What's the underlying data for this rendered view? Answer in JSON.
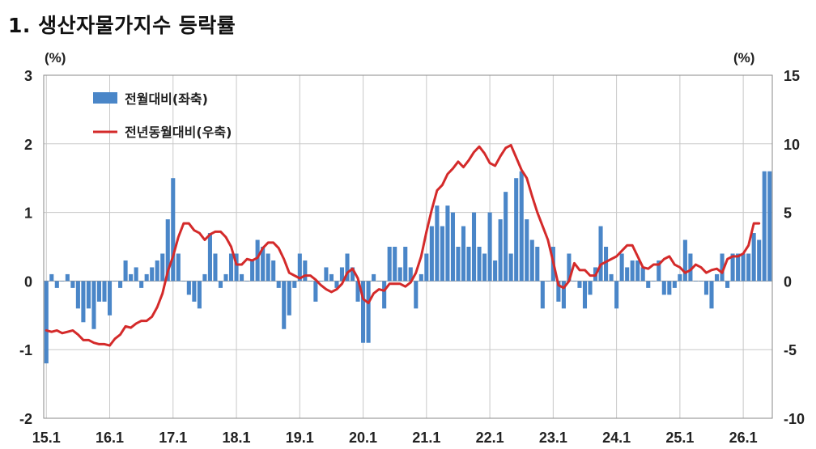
{
  "title": "1. 생산자물가지수 등락률",
  "chart_data": {
    "type": "bar+line",
    "title": "1. 생산자물가지수 등락률",
    "left_unit": "(%)",
    "right_unit": "(%)",
    "y_left": {
      "min": -2,
      "max": 3,
      "ticks": [
        "-2",
        "-1",
        "0",
        "1",
        "2",
        "3"
      ]
    },
    "y_right": {
      "min": -10,
      "max": 15,
      "ticks": [
        "-10",
        "-5",
        "0",
        "5",
        "10",
        "15"
      ]
    },
    "x_ticks": [
      "15.1",
      "16.1",
      "17.1",
      "18.1",
      "19.1",
      "20.1",
      "21.1",
      "22.1",
      "23.1",
      "24.1",
      "25.1",
      "26.1"
    ],
    "grid": true,
    "legend_position": "top-left",
    "series": [
      {
        "name": "전월대비(좌축)",
        "type": "bar",
        "axis": "left",
        "color": "#4a86c8",
        "values": [
          -1.2,
          0.1,
          -0.1,
          0,
          0.1,
          -0.1,
          -0.4,
          -0.6,
          -0.4,
          -0.7,
          -0.3,
          -0.3,
          -0.5,
          0,
          -0.1,
          0.3,
          0.1,
          0.2,
          -0.1,
          0.1,
          0.2,
          0.3,
          0.4,
          0.9,
          1.5,
          0.4,
          0,
          -0.2,
          -0.3,
          -0.4,
          0.1,
          0.7,
          0.4,
          -0.1,
          0.1,
          0.4,
          0.4,
          0.1,
          0,
          0.3,
          0.6,
          0.5,
          0.4,
          0.3,
          -0.1,
          -0.7,
          -0.5,
          -0.1,
          0.4,
          0.3,
          0,
          -0.3,
          0,
          0.2,
          0.1,
          -0.1,
          0.2,
          0.4,
          0.2,
          -0.3,
          -0.9,
          -0.9,
          0.1,
          0,
          -0.4,
          0.5,
          0.5,
          0.2,
          0.5,
          0.2,
          -0.4,
          0.1,
          0.4,
          0.8,
          1.1,
          0.8,
          1.1,
          1.0,
          0.5,
          0.8,
          0.5,
          1.0,
          0.5,
          0.4,
          1.0,
          0.3,
          0.9,
          1.3,
          0.4,
          1.5,
          1.6,
          0.9,
          0.6,
          0.5,
          -0.4,
          0,
          0.5,
          -0.3,
          -0.4,
          0.4,
          0,
          -0.1,
          -0.4,
          -0.2,
          0.2,
          0.8,
          0.5,
          0.1,
          -0.4,
          0.4,
          0.2,
          0.3,
          0.3,
          0.2,
          -0.1,
          0,
          0.3,
          -0.2,
          -0.2,
          -0.1,
          0.1,
          0.6,
          0.4,
          0,
          0,
          -0.2,
          -0.4,
          0.1,
          0.4,
          -0.1,
          0.4,
          0.4,
          0.4,
          0.4,
          0.7,
          0.6,
          1.6,
          1.6
        ]
      },
      {
        "name": "전년동월대비(우축)",
        "type": "line",
        "axis": "right",
        "color": "#d42a2a",
        "values": [
          -3.6,
          -3.7,
          -3.6,
          -3.8,
          -3.7,
          -3.6,
          -3.9,
          -4.3,
          -4.3,
          -4.5,
          -4.6,
          -4.6,
          -4.7,
          -4.2,
          -3.9,
          -3.3,
          -3.4,
          -3.1,
          -2.9,
          -2.9,
          -2.6,
          -1.9,
          -0.9,
          0.7,
          1.8,
          3.2,
          4.2,
          4.2,
          3.7,
          3.5,
          3.0,
          3.4,
          3.6,
          3.6,
          3.2,
          2.5,
          1.2,
          1.2,
          1.6,
          1.5,
          1.7,
          2.4,
          2.8,
          2.8,
          2.4,
          1.6,
          0.6,
          0.4,
          0.2,
          0.4,
          0.4,
          0.1,
          -0.3,
          -0.6,
          -0.8,
          -0.6,
          -0.2,
          0.6,
          0.9,
          0.2,
          -1.3,
          -1.6,
          -0.9,
          -0.6,
          -0.7,
          -0.2,
          -0.2,
          -0.2,
          -0.4,
          -0.1,
          0.6,
          1.8,
          3.6,
          5.2,
          6.6,
          7.0,
          7.8,
          8.2,
          8.7,
          8.3,
          8.8,
          9.4,
          9.8,
          9.3,
          8.6,
          8.4,
          9.1,
          9.7,
          9.9,
          9.0,
          8.1,
          7.5,
          6.2,
          5.0,
          4.0,
          3.0,
          1.4,
          -0.3,
          -0.5,
          0,
          1.3,
          0.8,
          0.8,
          0.4,
          0.4,
          1.2,
          1.4,
          1.6,
          1.8,
          2.2,
          2.6,
          2.6,
          1.8,
          1.0,
          0.9,
          1.2,
          1.2,
          1.6,
          1.8,
          1.2,
          1.0,
          0.6,
          0.8,
          1.2,
          1.0,
          0.6,
          0.8,
          0.9,
          0.6,
          1.6,
          1.8,
          1.8,
          2.0,
          2.6,
          4.2,
          4.2
        ]
      }
    ]
  },
  "legend": [
    {
      "label": "전월대비(좌축)",
      "color": "#4a86c8",
      "shape": "bar"
    },
    {
      "label": "전년동월대비(우축)",
      "color": "#d42a2a",
      "shape": "line"
    }
  ]
}
